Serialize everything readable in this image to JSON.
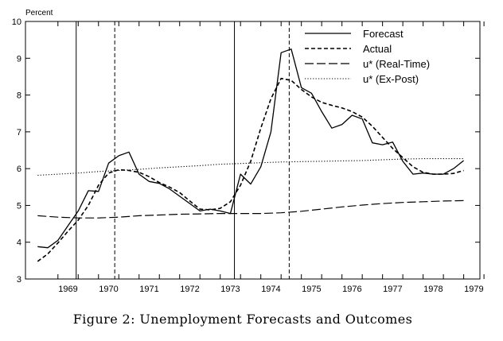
{
  "chart_data": {
    "type": "line",
    "unit_label": "Percent",
    "caption": "Figure 2: Unemployment Forecasts and Outcomes",
    "ylim": [
      3,
      10
    ],
    "yticks": [
      3,
      4,
      5,
      6,
      7,
      8,
      9,
      10
    ],
    "ytick_labels": [
      "3",
      "4",
      "5",
      "6",
      "7",
      "8",
      "9",
      "10"
    ],
    "xlim": [
      1968.2,
      1979.4
    ],
    "xtick_labels": [
      "1969",
      "1970",
      "1971",
      "1972",
      "1973",
      "1974",
      "1975",
      "1976",
      "1977",
      "1978",
      "1979"
    ],
    "vertical_lines": [
      {
        "x": 1969.45,
        "style": "solid"
      },
      {
        "x": 1970.4,
        "style": "dashed"
      },
      {
        "x": 1973.35,
        "style": "solid"
      },
      {
        "x": 1974.7,
        "style": "dashed"
      }
    ],
    "legend_position": "top-right",
    "series": [
      {
        "name": "Forecast",
        "style": "solid",
        "x": [
          1968.5,
          1968.75,
          1969.0,
          1969.25,
          1969.5,
          1969.75,
          1970.0,
          1970.25,
          1970.5,
          1970.75,
          1971.0,
          1971.25,
          1971.5,
          1971.75,
          1972.0,
          1972.25,
          1972.5,
          1972.75,
          1973.0,
          1973.25,
          1973.5,
          1973.75,
          1974.0,
          1974.25,
          1974.5,
          1974.75,
          1975.0,
          1975.25,
          1975.5,
          1975.75,
          1976.0,
          1976.25,
          1976.5,
          1976.75,
          1977.0,
          1977.25,
          1977.5,
          1977.75,
          1978.0,
          1978.25,
          1978.5,
          1978.75,
          1979.0
        ],
        "values": [
          3.88,
          3.85,
          4.05,
          4.45,
          4.85,
          5.4,
          5.38,
          6.15,
          6.35,
          6.45,
          5.85,
          5.65,
          5.6,
          5.45,
          5.25,
          5.05,
          4.85,
          4.9,
          4.85,
          4.78,
          5.85,
          5.58,
          6.05,
          7.0,
          9.15,
          9.25,
          8.2,
          8.05,
          7.55,
          7.1,
          7.2,
          7.45,
          7.35,
          6.7,
          6.65,
          6.72,
          6.2,
          5.85,
          5.88,
          5.85,
          5.85,
          6.0,
          6.22
        ]
      },
      {
        "name": "Actual",
        "style": "dashed",
        "x": [
          1968.5,
          1968.75,
          1969.0,
          1969.25,
          1969.5,
          1969.75,
          1970.0,
          1970.25,
          1970.5,
          1970.75,
          1971.0,
          1971.25,
          1971.5,
          1971.75,
          1972.0,
          1972.25,
          1972.5,
          1972.75,
          1973.0,
          1973.25,
          1973.5,
          1973.75,
          1974.0,
          1974.25,
          1974.5,
          1974.75,
          1975.0,
          1975.25,
          1975.5,
          1975.75,
          1976.0,
          1976.25,
          1976.5,
          1976.75,
          1977.0,
          1977.25,
          1977.5,
          1977.75,
          1978.0,
          1978.25,
          1978.5,
          1978.75,
          1979.0
        ],
        "values": [
          3.48,
          3.68,
          3.98,
          4.3,
          4.6,
          5.0,
          5.55,
          5.88,
          5.97,
          5.95,
          5.9,
          5.78,
          5.62,
          5.5,
          5.35,
          5.12,
          4.9,
          4.88,
          4.92,
          5.1,
          5.55,
          6.2,
          7.1,
          7.9,
          8.45,
          8.4,
          8.15,
          7.95,
          7.8,
          7.72,
          7.65,
          7.55,
          7.4,
          7.15,
          6.85,
          6.55,
          6.3,
          6.05,
          5.9,
          5.85,
          5.85,
          5.87,
          5.95
        ]
      },
      {
        "name": "u* (Real-Time)",
        "style": "long-dashed",
        "x": [
          1968.5,
          1969.0,
          1969.5,
          1970.0,
          1970.5,
          1971.0,
          1971.5,
          1972.0,
          1972.5,
          1973.0,
          1973.5,
          1974.0,
          1974.5,
          1975.0,
          1975.5,
          1976.0,
          1976.5,
          1977.0,
          1977.5,
          1978.0,
          1978.5,
          1979.0
        ],
        "values": [
          4.72,
          4.68,
          4.66,
          4.66,
          4.68,
          4.72,
          4.74,
          4.76,
          4.77,
          4.78,
          4.78,
          4.78,
          4.8,
          4.84,
          4.9,
          4.96,
          5.01,
          5.05,
          5.08,
          5.1,
          5.12,
          5.13
        ]
      },
      {
        "name": "u* (Ex-Post)",
        "style": "dotted",
        "x": [
          1968.5,
          1969.0,
          1969.5,
          1970.0,
          1970.5,
          1971.0,
          1971.5,
          1972.0,
          1972.5,
          1973.0,
          1973.5,
          1974.0,
          1974.5,
          1975.0,
          1975.5,
          1976.0,
          1976.5,
          1977.0,
          1977.5,
          1978.0,
          1978.5,
          1979.0
        ],
        "values": [
          5.82,
          5.85,
          5.88,
          5.92,
          5.95,
          5.98,
          6.02,
          6.05,
          6.08,
          6.12,
          6.14,
          6.16,
          6.18,
          6.19,
          6.2,
          6.21,
          6.22,
          6.24,
          6.26,
          6.27,
          6.27,
          6.27
        ]
      }
    ]
  }
}
